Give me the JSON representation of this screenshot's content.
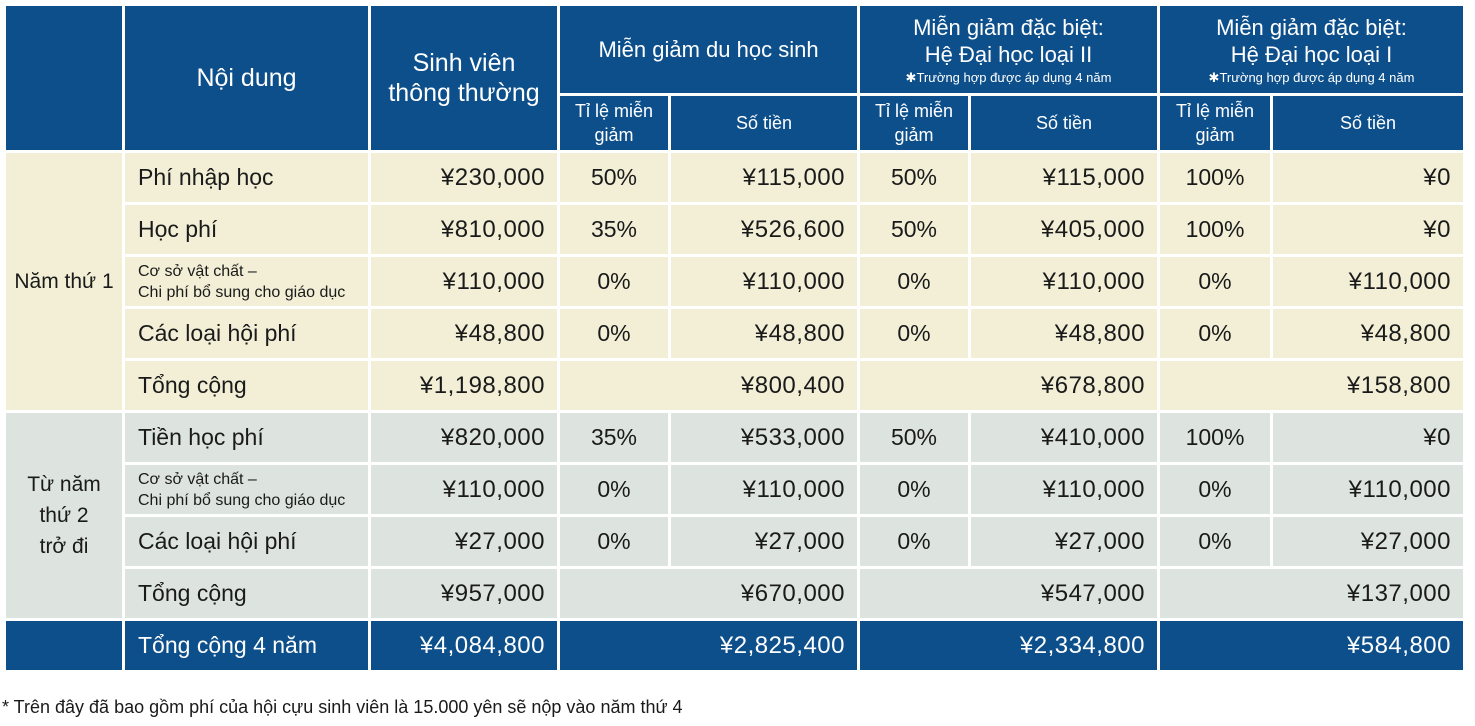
{
  "headers": {
    "content": "Nội dung",
    "regular": [
      "Sinh viên",
      "thông thường"
    ],
    "intl": "Miễn giảm du học sinh",
    "special2": [
      "Miễn giảm đặc biệt:",
      "Hệ Đại học loại II"
    ],
    "special1": [
      "Miễn giảm đặc biệt:",
      "Hệ Đại học loại I"
    ],
    "note4y": "✱Trường hợp được áp dụng 4 năm",
    "rate": [
      "Tỉ lệ miễn",
      "giảm"
    ],
    "amount": "Số tiền"
  },
  "year1": {
    "label": "Năm thứ 1",
    "rows": [
      {
        "label": "Phí nhập học",
        "regular": "¥230,000",
        "r1": "50%",
        "a1": "¥115,000",
        "r2": "50%",
        "a2": "¥115,000",
        "r3": "100%",
        "a3": "¥0"
      },
      {
        "label": "Học phí",
        "regular": "¥810,000",
        "r1": "35%",
        "a1": "¥526,600",
        "r2": "50%",
        "a2": "¥405,000",
        "r3": "100%",
        "a3": "¥0"
      },
      {
        "label": [
          "Cơ sở vật chất –",
          "Chi phí bổ sung cho giáo dục"
        ],
        "regular": "¥110,000",
        "r1": "0%",
        "a1": "¥110,000",
        "r2": "0%",
        "a2": "¥110,000",
        "r3": "0%",
        "a3": "¥110,000"
      },
      {
        "label": "Các loại hội phí",
        "regular": "¥48,800",
        "r1": "0%",
        "a1": "¥48,800",
        "r2": "0%",
        "a2": "¥48,800",
        "r3": "0%",
        "a3": "¥48,800"
      }
    ],
    "total": {
      "label": "Tổng cộng",
      "regular": "¥1,198,800",
      "a1": "¥800,400",
      "a2": "¥678,800",
      "a3": "¥158,800"
    }
  },
  "year2": {
    "label": [
      "Từ năm",
      "thứ 2",
      "trở đi"
    ],
    "rows": [
      {
        "label": "Tiền học phí",
        "regular": "¥820,000",
        "r1": "35%",
        "a1": "¥533,000",
        "r2": "50%",
        "a2": "¥410,000",
        "r3": "100%",
        "a3": "¥0"
      },
      {
        "label": [
          "Cơ sở vật chất –",
          "Chi phí bổ sung cho giáo dục"
        ],
        "regular": "¥110,000",
        "r1": "0%",
        "a1": "¥110,000",
        "r2": "0%",
        "a2": "¥110,000",
        "r3": "0%",
        "a3": "¥110,000"
      },
      {
        "label": "Các loại hội phí",
        "regular": "¥27,000",
        "r1": "0%",
        "a1": "¥27,000",
        "r2": "0%",
        "a2": "¥27,000",
        "r3": "0%",
        "a3": "¥27,000"
      }
    ],
    "total": {
      "label": "Tổng cộng",
      "regular": "¥957,000",
      "a1": "¥670,000",
      "a2": "¥547,000",
      "a3": "¥137,000"
    }
  },
  "grand": {
    "label": "Tổng cộng 4 năm",
    "regular": "¥4,084,800",
    "a1": "¥2,825,400",
    "a2": "¥2,334,800",
    "a3": "¥584,800"
  },
  "footnote": "* Trên đây đã bao gồm phí của hội cựu sinh viên là 15.000 yên sẽ nộp vào năm thứ 4",
  "colors": {
    "header": "#0d4f8b",
    "year1": "#f2efd6",
    "year2": "#dde4e0"
  }
}
